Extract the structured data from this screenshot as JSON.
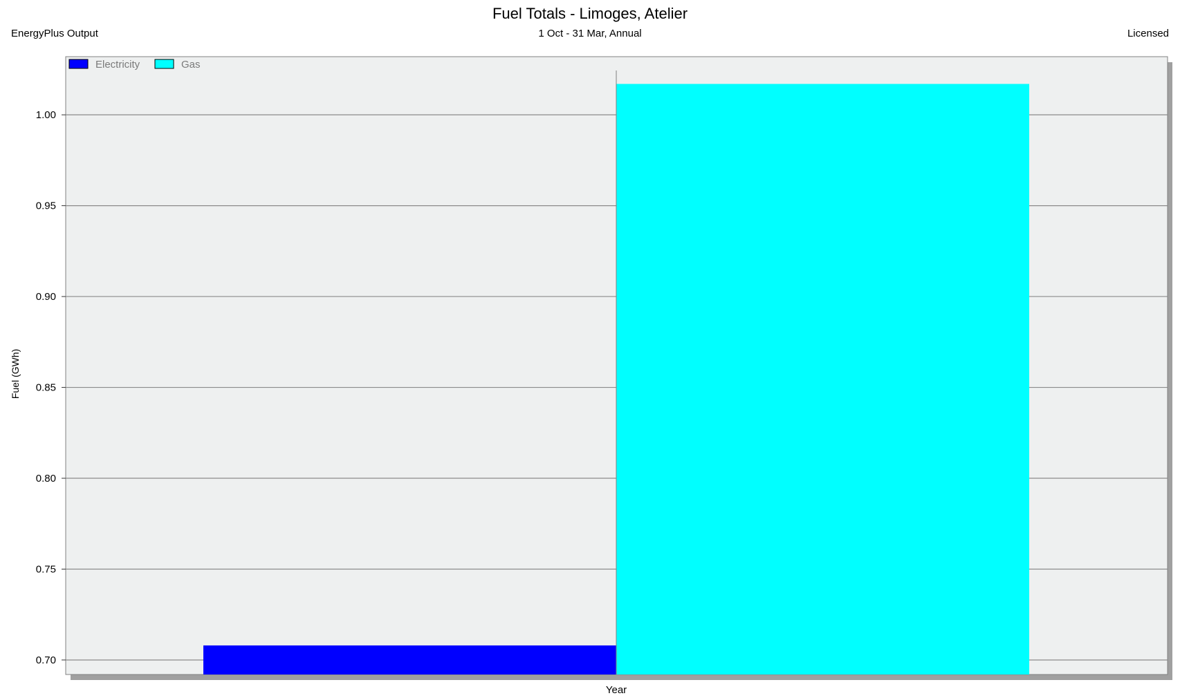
{
  "header": {
    "title": "Fuel Totals - Limoges, Atelier",
    "subtitle": "1 Oct - 31 Mar, Annual",
    "left_note": "EnergyPlus Output",
    "right_note": "Licensed"
  },
  "chart_data": {
    "type": "bar",
    "title": "Fuel Totals - Limoges, Atelier",
    "subtitle": "1 Oct - 31 Mar, Annual",
    "xlabel": "Year",
    "ylabel": "Fuel (GWh)",
    "categories": [
      "Year"
    ],
    "series": [
      {
        "name": "Electricity",
        "values": [
          0.708
        ],
        "color": "#0000ff"
      },
      {
        "name": "Gas",
        "values": [
          1.017
        ],
        "color": "#00ffff"
      }
    ],
    "ylim": [
      0.692,
      1.032
    ],
    "yticks": [
      "0.70",
      "0.75",
      "0.80",
      "0.85",
      "0.90",
      "0.95",
      "1.00"
    ],
    "grid": true,
    "legend_position": "top-left",
    "plot_background": "#eef0f0"
  }
}
